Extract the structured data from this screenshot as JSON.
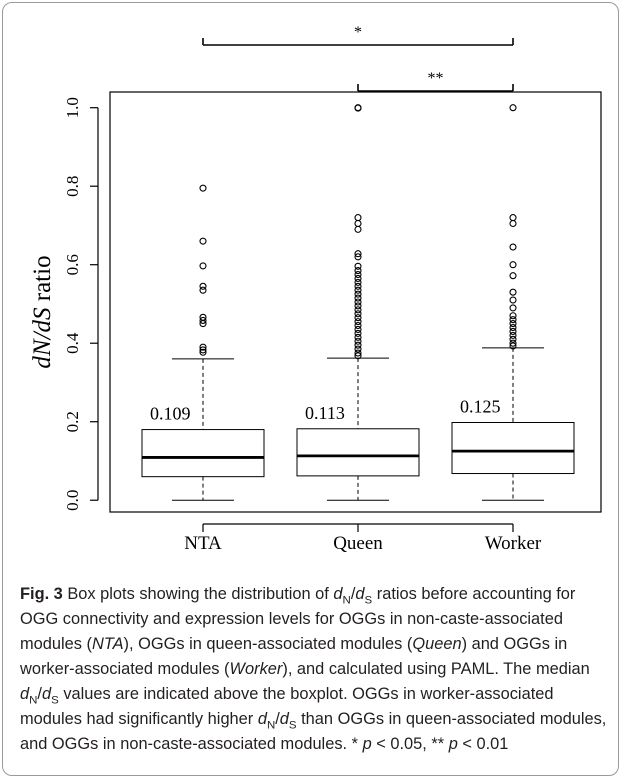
{
  "chart_data": {
    "type": "box",
    "categories": [
      "NTA",
      "Queen",
      "Worker"
    ],
    "ylabel": "dN/dS ratio",
    "ylabel_parts": {
      "var1": "dN/dS",
      "rest": " ratio"
    },
    "ylim": [
      -0.03,
      1.04
    ],
    "yticks": [
      0.0,
      0.2,
      0.4,
      0.6,
      0.8,
      1.0
    ],
    "ytick_labels": [
      "0.0",
      "0.2",
      "0.4",
      "0.6",
      "0.8",
      "1.0"
    ],
    "boxes": [
      {
        "name": "NTA",
        "min": 0.0,
        "q1": 0.06,
        "median": 0.109,
        "q3": 0.18,
        "max": 0.36,
        "median_label": "0.109",
        "outliers": [
          0.795,
          0.66,
          0.597,
          0.545,
          0.535,
          0.466,
          0.458,
          0.45,
          0.39,
          0.383,
          0.377
        ]
      },
      {
        "name": "Queen",
        "min": 0.0,
        "q1": 0.062,
        "median": 0.113,
        "q3": 0.182,
        "max": 0.362,
        "median_label": "0.113",
        "outliers": [
          1.0,
          0.999,
          0.72,
          0.705,
          0.69,
          0.628,
          0.62,
          0.596,
          0.585,
          0.575,
          0.565,
          0.555,
          0.545,
          0.535,
          0.525,
          0.515,
          0.505,
          0.495,
          0.485,
          0.475,
          0.465,
          0.455,
          0.445,
          0.435,
          0.425,
          0.415,
          0.405,
          0.395,
          0.385,
          0.375,
          0.368
        ]
      },
      {
        "name": "Worker",
        "min": 0.0,
        "q1": 0.068,
        "median": 0.125,
        "q3": 0.198,
        "max": 0.388,
        "median_label": "0.125",
        "outliers": [
          1.0,
          0.72,
          0.705,
          0.645,
          0.6,
          0.572,
          0.53,
          0.51,
          0.49,
          0.47,
          0.46,
          0.45,
          0.44,
          0.43,
          0.42,
          0.41,
          0.4,
          0.393
        ]
      }
    ],
    "significance": [
      {
        "from": 0,
        "to": 2,
        "label": "*"
      },
      {
        "from": 1,
        "to": 2,
        "label": "**"
      }
    ]
  },
  "caption": {
    "figure_label": "Fig. 3",
    "t1": " Box plots showing the distribution of ",
    "d": "d",
    "N": "N",
    "slash": "/",
    "S": "S",
    "t2": " ratios before accounting for OGG connectivity and expression levels for OGGs in non-caste-associated modules (",
    "nta": "NTA",
    "t3": "), OGGs in queen-associated modules (",
    "queen": "Queen",
    "t4": ") and OGGs in worker-associated modules (",
    "worker": "Worker",
    "t5": "), and calculated using PAML. The median ",
    "t6": " values are indicated above the boxplot. OGGs in worker-associated modules had significantly higher ",
    "t7": " than OGGs in queen-associated modules, and OGGs in non-caste-associated modules. * ",
    "p": "p",
    "t8": " < 0.05, ** ",
    "t9": " < 0.01"
  }
}
